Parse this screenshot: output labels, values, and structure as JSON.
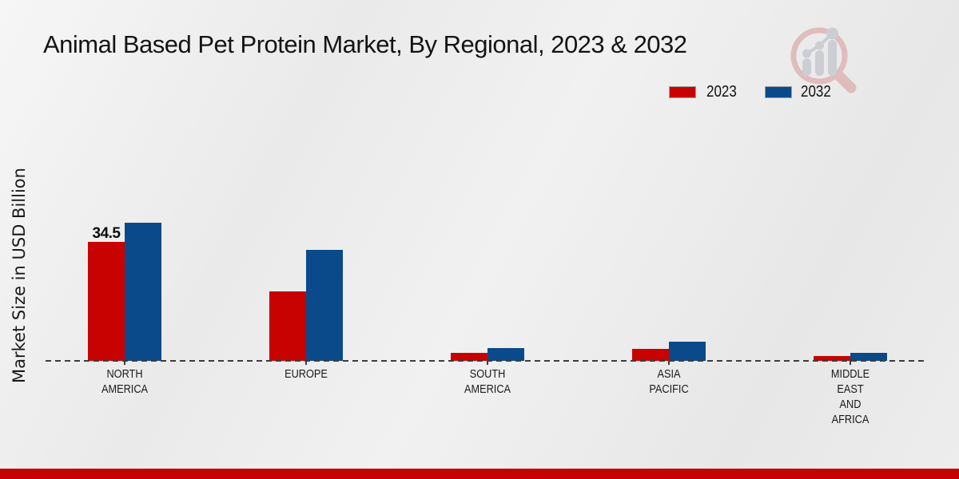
{
  "page": {
    "title": "Animal Based Pet Protein Market, By Regional, 2023 & 2032",
    "y_axis_label": "Market Size in USD Billion",
    "watermark_icon": "magnifier-growth-chart-logo",
    "footer_bar_color": "#c20300"
  },
  "legend": {
    "items": [
      {
        "label": "2023",
        "color": "#c80201"
      },
      {
        "label": "2032",
        "color": "#0a4a8b"
      }
    ]
  },
  "chart_data": {
    "type": "bar",
    "title": "Animal Based Pet Protein Market, By Regional, 2023 & 2032",
    "xlabel": "",
    "ylabel": "Market Size in USD Billion",
    "categories": [
      "NORTH\nAMERICA",
      "EUROPE",
      "SOUTH\nAMERICA",
      "ASIA\nPACIFIC",
      "MIDDLE\nEAST\nAND\nAFRICA"
    ],
    "series": [
      {
        "name": "2023",
        "color": "#c80201",
        "values": [
          34.5,
          20.1,
          2.3,
          3.5,
          1.4
        ],
        "data_labels": [
          "34.5",
          "",
          "",
          "",
          ""
        ]
      },
      {
        "name": "2032",
        "color": "#0a4a8b",
        "values": [
          40.0,
          32.2,
          3.7,
          5.6,
          2.4
        ],
        "data_labels": [
          "",
          "",
          "",
          "",
          ""
        ]
      }
    ],
    "ylim": [
      0,
      45
    ],
    "grid": false,
    "y_axis_ticks_visible": false,
    "baseline_style": "dashed",
    "legend_position": "top-right"
  }
}
